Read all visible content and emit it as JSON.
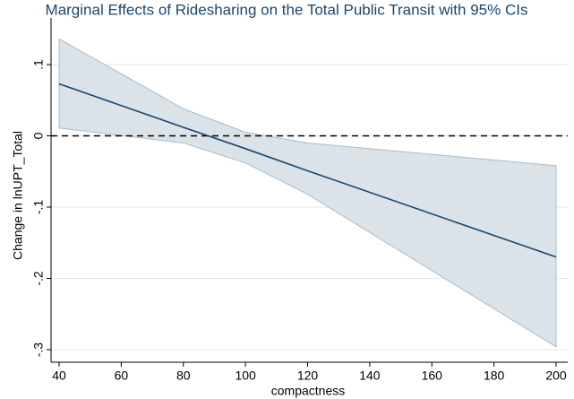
{
  "chart_data": {
    "type": "line",
    "title": "Marginal Effects of Ridesharing on the Total Public Transit with 95% CIs",
    "x_label": "compactness",
    "y_label": "Change in lnUPT_Total",
    "x": [
      40,
      80,
      100,
      120,
      200
    ],
    "series": [
      {
        "color": "#1a476f",
        "values": [
          0.073,
          0.012,
          -0.018,
          -0.049,
          -0.17
        ]
      }
    ],
    "ci_upper": [
      0.136,
      0.038,
      0.005,
      -0.01,
      -0.042
    ],
    "ci_lower": [
      0.011,
      -0.01,
      -0.038,
      -0.082,
      -0.296
    ],
    "ci_color": "#dbe2e8",
    "ci_edge": "#a9bccb",
    "ref_line": 0,
    "xlim": [
      40,
      200
    ],
    "ylim": [
      -0.3,
      0.1
    ],
    "xticks": [
      40,
      60,
      80,
      100,
      120,
      140,
      160,
      180,
      200
    ],
    "yticks": [
      {
        "value": -0.3,
        "label": "-.3"
      },
      {
        "value": -0.2,
        "label": "-.2"
      },
      {
        "value": -0.1,
        "label": "-.1"
      },
      0,
      {
        "value": 0.1,
        "label": ".1"
      }
    ],
    "grid": true
  }
}
